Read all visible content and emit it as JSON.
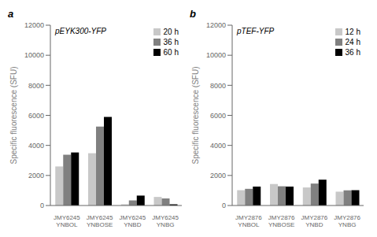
{
  "chart_data": [
    {
      "type": "bar",
      "title": "pEYK300-YFP",
      "annotations": [
        "a"
      ],
      "categories": [
        "JMY6245\nYNBOL",
        "JMY6245\nYNBOSE",
        "JMY6245\nYNBD",
        "JMY6245\nYNBG"
      ],
      "series": [
        {
          "name": "20 h",
          "color": "#c8c8c8",
          "values": [
            2600,
            3480,
            80,
            570
          ]
        },
        {
          "name": "36 h",
          "color": "#808080",
          "values": [
            3380,
            5250,
            340,
            470
          ]
        },
        {
          "name": "60 h",
          "color": "#000000",
          "values": [
            3530,
            5900,
            660,
            80
          ]
        }
      ],
      "ylim": [
        0,
        12000
      ],
      "yticks": [
        0,
        2000,
        4000,
        6000,
        8000,
        10000,
        12000
      ],
      "ylabel": "Specific fluorescence (SFU)",
      "legend": "upper right"
    },
    {
      "type": "bar",
      "title": "pTEF-YFP",
      "annotations": [
        "b"
      ],
      "categories": [
        "JMY2876\nYNBOL",
        "JMY2876\nYNBOSE",
        "JMY2876\nYNBD",
        "JMY2876\nYNBG"
      ],
      "series": [
        {
          "name": "12 h",
          "color": "#c8c8c8",
          "values": [
            1020,
            1430,
            1200,
            920
          ]
        },
        {
          "name": "24 h",
          "color": "#808080",
          "values": [
            1110,
            1280,
            1460,
            1010
          ]
        },
        {
          "name": "36 h",
          "color": "#000000",
          "values": [
            1260,
            1260,
            1720,
            1020
          ]
        }
      ],
      "ylim": [
        0,
        12000
      ],
      "yticks": [
        0,
        2000,
        4000,
        6000,
        8000,
        10000,
        12000
      ],
      "ylabel": "Specific fluorescence (SFU)",
      "legend": "upper right"
    }
  ]
}
